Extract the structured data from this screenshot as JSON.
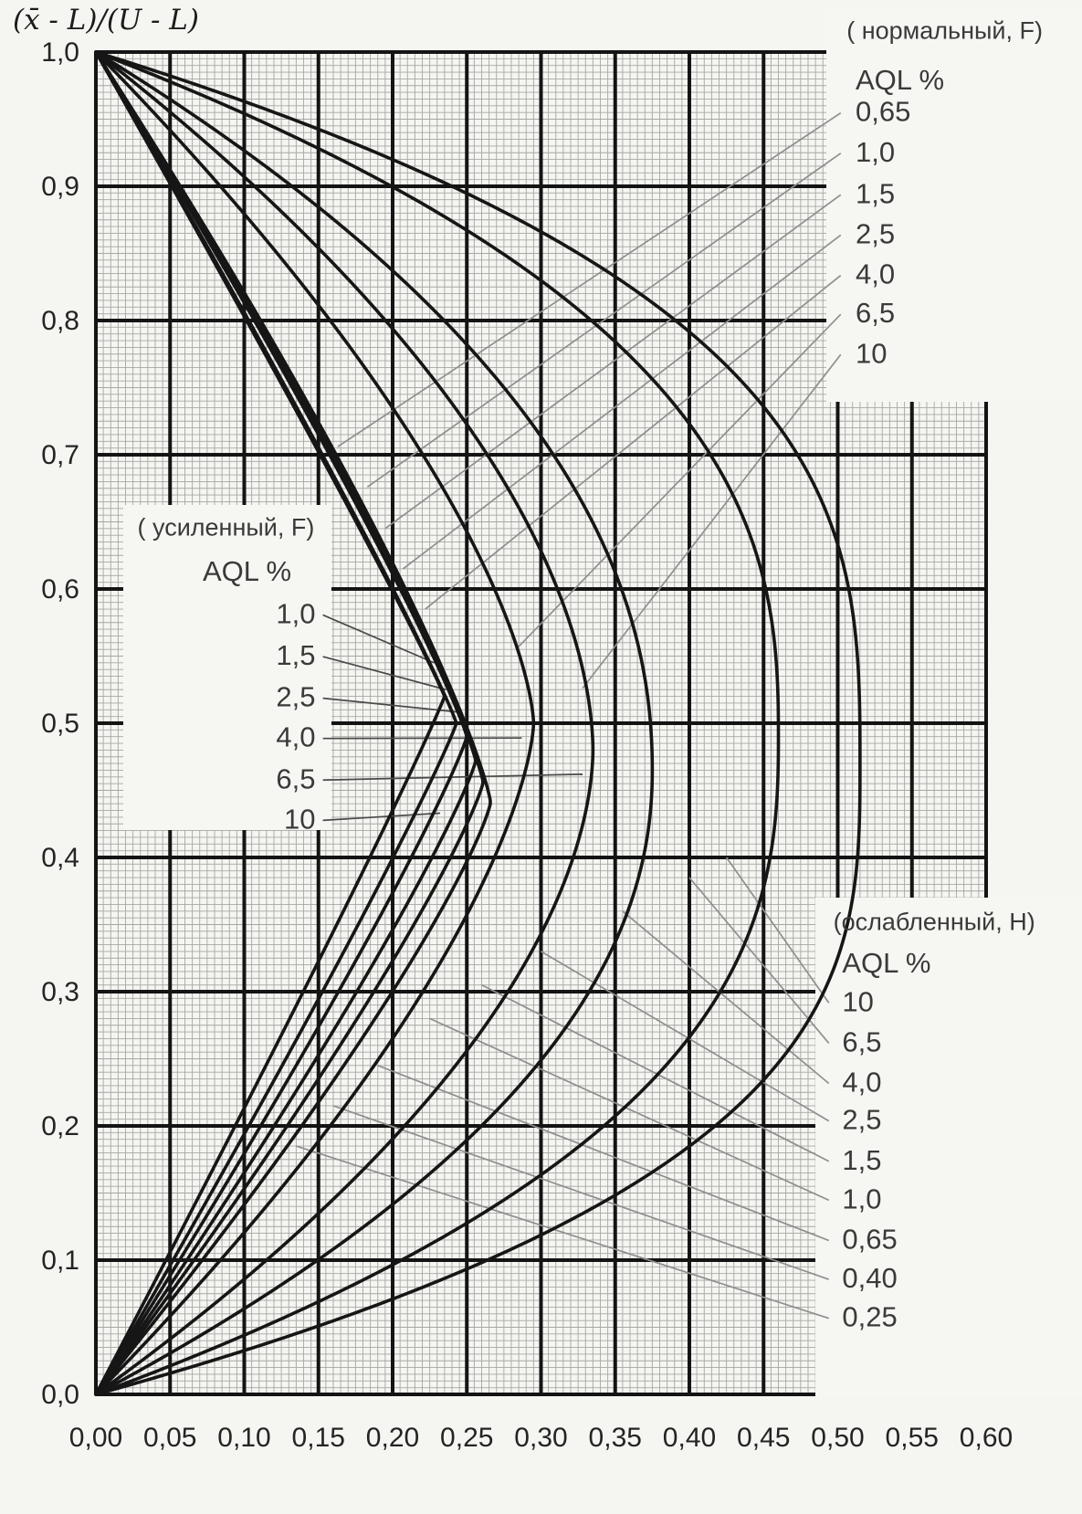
{
  "colors": {
    "background": "#f5f5f2",
    "box_fill": "#f6f6f3",
    "grid_minor": "#a6a6a3",
    "grid_major": "#141414",
    "curve": "#161616",
    "leader_light": "#8f8f8f",
    "leader_dark": "#4a4a4a",
    "text": "#3a3a3a",
    "tick_text": "#242424"
  },
  "chart_data": {
    "type": "line",
    "title": "",
    "axis_title": "(x̄ -  L)/(U -  L)",
    "xlabel": "",
    "ylabel": "(x̄ - L)/(U - L)",
    "xlim": [
      0,
      0.6
    ],
    "ylim": [
      0,
      1.0
    ],
    "x_major_step": 0.05,
    "y_major_step": 0.1,
    "x_minor_step": 0.005,
    "y_minor_step": 0.005,
    "grid": true,
    "x_tick_labels": [
      "0,00",
      "0,05",
      "0,10",
      "0,15",
      "0,20",
      "0,25",
      "0,30",
      "0,35",
      "0,40",
      "0,45",
      "0,50",
      "0,55",
      "0,60"
    ],
    "y_tick_labels": [
      "0,0",
      "0,1",
      "0,2",
      "0,3",
      "0,4",
      "0,5",
      "0,6",
      "0,7",
      "0,8",
      "0,9",
      "1,0"
    ],
    "curves": [
      {
        "name": "acceptance-curve-1",
        "apex_x": 0.235,
        "apex_y": 0.52,
        "shape_exp": 1.05
      },
      {
        "name": "acceptance-curve-2",
        "apex_x": 0.243,
        "apex_y": 0.5,
        "shape_exp": 1.08
      },
      {
        "name": "acceptance-curve-3",
        "apex_x": 0.25,
        "apex_y": 0.49,
        "shape_exp": 1.12
      },
      {
        "name": "acceptance-curve-4",
        "apex_x": 0.256,
        "apex_y": 0.472,
        "shape_exp": 1.15
      },
      {
        "name": "acceptance-curve-5",
        "apex_x": 0.261,
        "apex_y": 0.456,
        "shape_exp": 1.18
      },
      {
        "name": "acceptance-curve-6",
        "apex_x": 0.266,
        "apex_y": 0.441,
        "shape_exp": 1.22
      },
      {
        "name": "acceptance-curve-7",
        "apex_x": 0.295,
        "apex_y": 0.5,
        "shape_exp": 1.5
      },
      {
        "name": "acceptance-curve-8",
        "apex_x": 0.335,
        "apex_y": 0.48,
        "shape_exp": 1.8
      },
      {
        "name": "acceptance-curve-9",
        "apex_x": 0.375,
        "apex_y": 0.465,
        "shape_exp": 2.1
      },
      {
        "name": "acceptance-curve-10",
        "apex_x": 0.46,
        "apex_y": 0.49,
        "shape_exp": 2.6
      },
      {
        "name": "acceptance-curve-11",
        "apex_x": 0.515,
        "apex_y": 0.47,
        "shape_exp": 3.0
      }
    ],
    "label_groups": [
      {
        "id": "normal",
        "title": "( нормальный,  F)",
        "subtitle": "AQL %",
        "title_pos": [
          0.506,
          1.016
        ],
        "subtitle_pos": [
          0.512,
          0.979
        ],
        "label_x": 0.512,
        "anchor": "start",
        "leader_x": 0.502,
        "leader_style": "light",
        "entries": [
          {
            "label": "0,65",
            "y": 0.956,
            "to": [
              0.163,
              0.706
            ]
          },
          {
            "label": "1,0",
            "y": 0.926,
            "to": [
              0.183,
              0.676
            ]
          },
          {
            "label": "1,5",
            "y": 0.895,
            "to": [
              0.195,
              0.645
            ]
          },
          {
            "label": "2,5",
            "y": 0.865,
            "to": [
              0.207,
              0.615
            ]
          },
          {
            "label": "4,0",
            "y": 0.835,
            "to": [
              0.222,
              0.585
            ]
          },
          {
            "label": "6,5",
            "y": 0.806,
            "to": [
              0.284,
              0.556
            ]
          },
          {
            "label": "10",
            "y": 0.776,
            "to": [
              0.328,
              0.526
            ]
          }
        ]
      },
      {
        "id": "tightened",
        "title": "( усиленный,   F)",
        "subtitle": "AQL %",
        "title_pos": [
          0.028,
          0.646
        ],
        "subtitle_pos": [
          0.072,
          0.613
        ],
        "label_x": 0.148,
        "anchor": "end",
        "leader_x": 0.153,
        "leader_style": "dark",
        "entries": [
          {
            "label": "1,0",
            "y": 0.582,
            "to": [
              0.228,
              0.545
            ]
          },
          {
            "label": "1,5",
            "y": 0.551,
            "to": [
              0.236,
              0.525
            ]
          },
          {
            "label": "2,5",
            "y": 0.52,
            "to": [
              0.247,
              0.508
            ]
          },
          {
            "label": "4,0",
            "y": 0.49,
            "to": [
              0.287,
              0.489
            ]
          },
          {
            "label": "6,5",
            "y": 0.459,
            "to": [
              0.328,
              0.462
            ]
          },
          {
            "label": "10",
            "y": 0.429,
            "to": [
              0.232,
              0.433
            ]
          }
        ]
      },
      {
        "id": "reduced",
        "title": "(ослабленный, H)",
        "subtitle": "AQL %",
        "title_pos": [
          0.497,
          0.352
        ],
        "subtitle_pos": [
          0.503,
          0.321
        ],
        "label_x": 0.503,
        "anchor": "start",
        "leader_x": 0.494,
        "leader_style": "light",
        "entries": [
          {
            "label": "10",
            "y": 0.293,
            "to": [
              0.425,
              0.4
            ]
          },
          {
            "label": "6,5",
            "y": 0.263,
            "to": [
              0.4,
              0.385
            ]
          },
          {
            "label": "4,0",
            "y": 0.233,
            "to": [
              0.355,
              0.36
            ]
          },
          {
            "label": "2,5",
            "y": 0.205,
            "to": [
              0.3,
              0.33
            ]
          },
          {
            "label": "1,5",
            "y": 0.175,
            "to": [
              0.26,
              0.305
            ]
          },
          {
            "label": "1,0",
            "y": 0.146,
            "to": [
              0.225,
              0.28
            ]
          },
          {
            "label": "0,65",
            "y": 0.116,
            "to": [
              0.19,
              0.245
            ]
          },
          {
            "label": "0,40",
            "y": 0.087,
            "to": [
              0.16,
              0.215
            ]
          },
          {
            "label": "0,25",
            "y": 0.058,
            "to": [
              0.135,
              0.185
            ]
          }
        ]
      }
    ]
  }
}
